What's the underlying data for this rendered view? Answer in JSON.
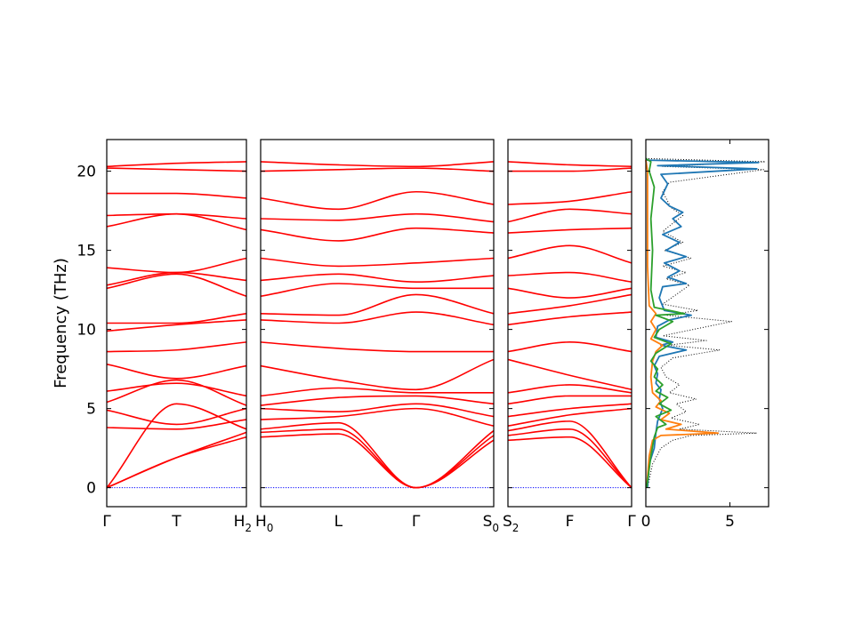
{
  "chart_data": {
    "type": "line",
    "ylabel": "Frequency (THz)",
    "ylim": [
      -1.2,
      22
    ],
    "yticks": [
      0,
      5,
      10,
      15,
      20
    ],
    "colors": {
      "bands": "#ff0000",
      "zero_line": "#0000ff",
      "dos_total": "#000000",
      "dos_a": "#1f77b4",
      "dos_b": "#ff7f0e",
      "dos_c": "#2ca02c"
    },
    "panels": [
      {
        "xticks": [
          {
            "label": "Γ",
            "sub": ""
          },
          {
            "label": "T",
            "sub": ""
          },
          {
            "label": "H",
            "sub": "2"
          }
        ],
        "bands": [
          [
            0,
            1.9,
            3.2
          ],
          [
            0,
            1.9,
            3.5
          ],
          [
            0,
            5.3,
            3.7
          ],
          [
            3.8,
            3.7,
            4.3
          ],
          [
            4.9,
            4.0,
            5.0
          ],
          [
            5.4,
            6.8,
            5.2
          ],
          [
            6.1,
            6.6,
            5.8
          ],
          [
            7.8,
            6.9,
            7.7
          ],
          [
            8.6,
            8.7,
            9.2
          ],
          [
            9.9,
            10.3,
            10.6
          ],
          [
            10.4,
            10.4,
            11.0
          ],
          [
            12.6,
            13.5,
            12.1
          ],
          [
            12.8,
            13.6,
            13.1
          ],
          [
            13.9,
            13.6,
            14.5
          ],
          [
            16.5,
            17.3,
            16.3
          ],
          [
            17.2,
            17.3,
            17.0
          ],
          [
            18.6,
            18.6,
            18.3
          ],
          [
            20.2,
            20.1,
            20.0
          ],
          [
            20.3,
            20.5,
            20.6
          ]
        ]
      },
      {
        "xticks": [
          {
            "label": "H",
            "sub": "0"
          },
          {
            "label": "L",
            "sub": ""
          },
          {
            "label": "Γ",
            "sub": ""
          },
          {
            "label": "S",
            "sub": "0"
          }
        ],
        "bands": [
          [
            3.2,
            3.4,
            0,
            3.0
          ],
          [
            3.5,
            3.7,
            0,
            3.3
          ],
          [
            3.7,
            4.1,
            0,
            3.6
          ],
          [
            4.3,
            4.5,
            5.0,
            3.9
          ],
          [
            5.0,
            4.8,
            5.3,
            4.5
          ],
          [
            5.2,
            5.7,
            5.8,
            5.3
          ],
          [
            5.8,
            6.3,
            6.0,
            6.0
          ],
          [
            7.7,
            6.8,
            6.2,
            8.1
          ],
          [
            9.2,
            8.8,
            8.6,
            8.6
          ],
          [
            10.6,
            10.4,
            11.1,
            10.3
          ],
          [
            11.0,
            10.9,
            12.2,
            11.0
          ],
          [
            12.1,
            12.9,
            12.6,
            12.6
          ],
          [
            13.1,
            13.5,
            13.0,
            13.4
          ],
          [
            14.5,
            14.0,
            14.2,
            14.5
          ],
          [
            16.3,
            15.6,
            16.4,
            16.1
          ],
          [
            17.0,
            16.9,
            17.3,
            16.8
          ],
          [
            18.3,
            17.6,
            18.7,
            17.9
          ],
          [
            20.0,
            20.1,
            20.2,
            20.0
          ],
          [
            20.6,
            20.4,
            20.3,
            20.6
          ]
        ]
      },
      {
        "xticks": [
          {
            "label": "S",
            "sub": "2"
          },
          {
            "label": "F",
            "sub": ""
          },
          {
            "label": "Γ",
            "sub": ""
          }
        ],
        "bands": [
          [
            3.0,
            3.2,
            0
          ],
          [
            3.3,
            3.7,
            0
          ],
          [
            3.6,
            4.2,
            0
          ],
          [
            3.9,
            4.6,
            5.0
          ],
          [
            4.5,
            5.0,
            5.3
          ],
          [
            5.3,
            5.8,
            5.8
          ],
          [
            6.0,
            6.5,
            6.0
          ],
          [
            8.1,
            7.1,
            6.2
          ],
          [
            8.6,
            9.2,
            8.6
          ],
          [
            10.3,
            10.8,
            11.1
          ],
          [
            11.0,
            11.5,
            12.2
          ],
          [
            12.6,
            12.0,
            12.6
          ],
          [
            13.4,
            13.6,
            13.0
          ],
          [
            14.5,
            15.3,
            14.2
          ],
          [
            16.1,
            16.3,
            16.4
          ],
          [
            16.8,
            17.6,
            17.3
          ],
          [
            17.9,
            18.1,
            18.7
          ],
          [
            20.0,
            20.0,
            20.2
          ],
          [
            20.6,
            20.4,
            20.3
          ]
        ]
      }
    ],
    "dos": {
      "xlim": [
        0,
        7.3
      ],
      "xticks": [
        0,
        5
      ],
      "series": [
        {
          "color_key": "dos_total",
          "style": "dotted",
          "points": [
            [
              0.1,
              0
            ],
            [
              0.4,
              1.5
            ],
            [
              0.9,
              2.5
            ],
            [
              1.6,
              3.0
            ],
            [
              2.7,
              3.3
            ],
            [
              6.6,
              3.45
            ],
            [
              2.0,
              3.7
            ],
            [
              3.2,
              4.0
            ],
            [
              1.5,
              4.4
            ],
            [
              2.4,
              4.8
            ],
            [
              1.8,
              5.3
            ],
            [
              3.0,
              5.6
            ],
            [
              1.4,
              6.0
            ],
            [
              2.0,
              6.5
            ],
            [
              1.2,
              7.0
            ],
            [
              0.9,
              7.6
            ],
            [
              1.6,
              8.2
            ],
            [
              4.4,
              8.7
            ],
            [
              1.3,
              9.0
            ],
            [
              3.6,
              9.3
            ],
            [
              1.0,
              9.6
            ],
            [
              5.1,
              10.5
            ],
            [
              1.2,
              10.9
            ],
            [
              3.1,
              11.2
            ],
            [
              1.0,
              11.6
            ],
            [
              2.6,
              12.8
            ],
            [
              1.2,
              13.2
            ],
            [
              2.4,
              13.6
            ],
            [
              1.0,
              14.0
            ],
            [
              2.7,
              14.5
            ],
            [
              1.1,
              15.0
            ],
            [
              2.2,
              15.5
            ],
            [
              1.0,
              16.2
            ],
            [
              2.2,
              17.2
            ],
            [
              1.5,
              17.7
            ],
            [
              1.0,
              18.7
            ],
            [
              1.4,
              19.3
            ],
            [
              7.0,
              20.1
            ],
            [
              1.0,
              20.3
            ],
            [
              7.1,
              20.6
            ],
            [
              0.0,
              20.8
            ]
          ]
        },
        {
          "color_key": "dos_a",
          "style": "solid",
          "points": [
            [
              0.1,
              0
            ],
            [
              0.2,
              1.5
            ],
            [
              0.5,
              2.5
            ],
            [
              0.6,
              3.5
            ],
            [
              0.7,
              4.2
            ],
            [
              1.0,
              5.0
            ],
            [
              0.8,
              5.6
            ],
            [
              0.9,
              6.2
            ],
            [
              0.6,
              6.6
            ],
            [
              0.7,
              7.2
            ],
            [
              0.5,
              7.7
            ],
            [
              0.8,
              8.3
            ],
            [
              2.4,
              8.7
            ],
            [
              0.9,
              9.0
            ],
            [
              1.6,
              9.2
            ],
            [
              0.6,
              9.5
            ],
            [
              0.7,
              10.2
            ],
            [
              1.4,
              10.6
            ],
            [
              2.7,
              10.9
            ],
            [
              1.1,
              11.2
            ],
            [
              0.8,
              12.0
            ],
            [
              1.0,
              12.7
            ],
            [
              2.4,
              12.9
            ],
            [
              1.3,
              13.3
            ],
            [
              2.0,
              13.7
            ],
            [
              1.1,
              14.2
            ],
            [
              2.4,
              14.6
            ],
            [
              1.2,
              15.0
            ],
            [
              2.0,
              15.5
            ],
            [
              1.0,
              16.0
            ],
            [
              2.1,
              16.5
            ],
            [
              1.6,
              17.0
            ],
            [
              2.2,
              17.4
            ],
            [
              1.4,
              17.8
            ],
            [
              0.9,
              18.3
            ],
            [
              1.3,
              19.2
            ],
            [
              0.9,
              19.8
            ],
            [
              6.6,
              20.15
            ],
            [
              0.7,
              20.35
            ],
            [
              6.7,
              20.55
            ],
            [
              0.0,
              20.7
            ]
          ]
        },
        {
          "color_key": "dos_b",
          "style": "solid",
          "points": [
            [
              0.05,
              0
            ],
            [
              0.2,
              2.0
            ],
            [
              0.4,
              3.0
            ],
            [
              0.9,
              3.3
            ],
            [
              4.3,
              3.45
            ],
            [
              1.2,
              3.7
            ],
            [
              2.1,
              4.0
            ],
            [
              0.9,
              4.3
            ],
            [
              1.4,
              4.7
            ],
            [
              0.6,
              5.1
            ],
            [
              0.9,
              5.5
            ],
            [
              0.4,
              6.0
            ],
            [
              0.3,
              7.0
            ],
            [
              0.4,
              8.0
            ],
            [
              0.6,
              8.6
            ],
            [
              1.0,
              9.0
            ],
            [
              0.3,
              9.4
            ],
            [
              0.6,
              10.0
            ],
            [
              0.3,
              10.5
            ],
            [
              0.6,
              11.0
            ],
            [
              0.2,
              11.5
            ],
            [
              0.1,
              14.0
            ],
            [
              0.1,
              20.0
            ],
            [
              0.0,
              20.7
            ]
          ]
        },
        {
          "color_key": "dos_c",
          "style": "solid",
          "points": [
            [
              0.05,
              0
            ],
            [
              0.3,
              2.0
            ],
            [
              0.5,
              3.2
            ],
            [
              0.7,
              3.8
            ],
            [
              1.2,
              4.0
            ],
            [
              0.6,
              4.5
            ],
            [
              1.5,
              4.9
            ],
            [
              0.8,
              5.3
            ],
            [
              1.3,
              5.7
            ],
            [
              0.6,
              6.1
            ],
            [
              1.0,
              6.5
            ],
            [
              0.5,
              7.0
            ],
            [
              0.7,
              7.5
            ],
            [
              0.3,
              8.0
            ],
            [
              0.6,
              8.5
            ],
            [
              1.5,
              9.1
            ],
            [
              0.5,
              9.5
            ],
            [
              0.8,
              10.0
            ],
            [
              1.6,
              10.5
            ],
            [
              0.6,
              10.9
            ],
            [
              2.3,
              11.0
            ],
            [
              0.5,
              11.4
            ],
            [
              0.3,
              12.5
            ],
            [
              0.4,
              15.0
            ],
            [
              0.3,
              17.0
            ],
            [
              0.5,
              19.0
            ],
            [
              0.2,
              20.0
            ],
            [
              0.3,
              20.6
            ],
            [
              0.0,
              20.8
            ]
          ]
        }
      ]
    }
  }
}
